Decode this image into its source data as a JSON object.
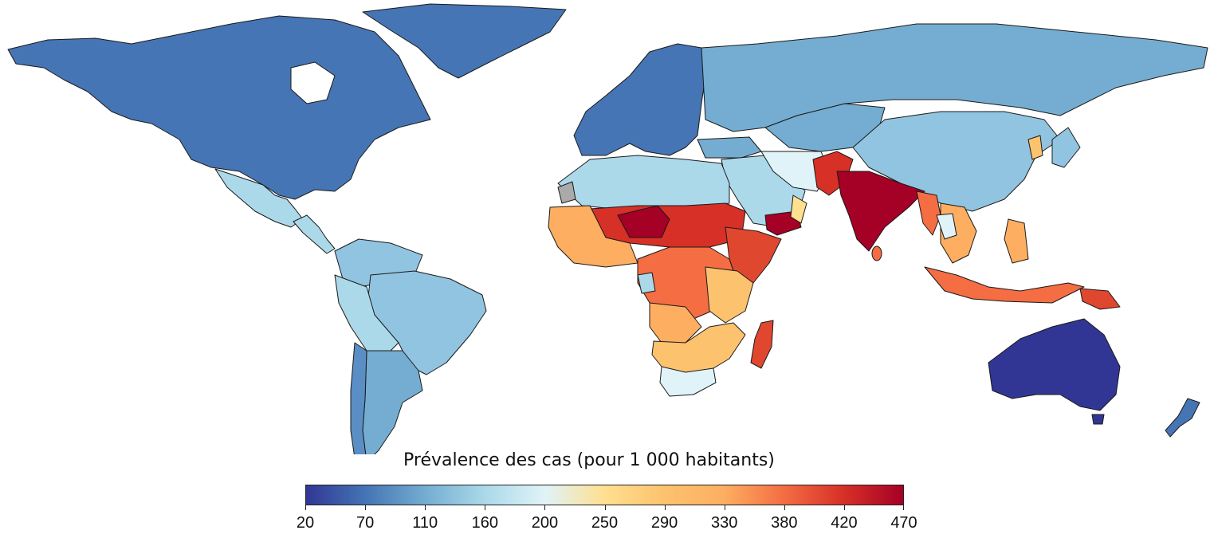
{
  "legend": {
    "title": "Prévalence des cas (pour 1 000 habitants)",
    "ticks": [
      "20",
      "70",
      "110",
      "160",
      "200",
      "250",
      "290",
      "330",
      "380",
      "420",
      "470"
    ],
    "range": [
      20,
      470
    ],
    "scale": "diverging blue-yellow-red"
  },
  "colors": {
    "c20": "#313695",
    "c70": "#4575b4",
    "c95": "#5b8ec4",
    "c110": "#74add1",
    "c140": "#91c4e0",
    "c160": "#abd9e9",
    "c190": "#e0f3f8",
    "c250": "#fee090",
    "c290": "#fdc26e",
    "c330": "#fdae61",
    "c360": "#f46d43",
    "c400": "#e0472f",
    "c440": "#d73027",
    "c470": "#a50026",
    "nodata": "#aaaaaa"
  },
  "map_regions": [
    {
      "name": "north-america",
      "value_band": "c70"
    },
    {
      "name": "greenland",
      "value_band": "c70"
    },
    {
      "name": "mexico",
      "value_band": "c160"
    },
    {
      "name": "central-america",
      "value_band": "c160"
    },
    {
      "name": "south-america-north",
      "value_band": "c140"
    },
    {
      "name": "brazil",
      "value_band": "c140"
    },
    {
      "name": "argentina",
      "value_band": "c110"
    },
    {
      "name": "chile",
      "value_band": "c95"
    },
    {
      "name": "europe",
      "value_band": "c70"
    },
    {
      "name": "russia",
      "value_band": "c110"
    },
    {
      "name": "central-asia",
      "value_band": "c110"
    },
    {
      "name": "china",
      "value_band": "c140"
    },
    {
      "name": "north-africa",
      "value_band": "c160"
    },
    {
      "name": "middle-east",
      "value_band": "c160"
    },
    {
      "name": "sahel",
      "value_band": "c440"
    },
    {
      "name": "west-africa",
      "value_band": "c330"
    },
    {
      "name": "central-africa",
      "value_band": "c360"
    },
    {
      "name": "east-africa",
      "value_band": "c400"
    },
    {
      "name": "southern-africa",
      "value_band": "c290"
    },
    {
      "name": "south-africa",
      "value_band": "c190"
    },
    {
      "name": "madagascar",
      "value_band": "c400"
    },
    {
      "name": "yemen",
      "value_band": "c470"
    },
    {
      "name": "india",
      "value_band": "c470"
    },
    {
      "name": "pakistan",
      "value_band": "c440"
    },
    {
      "name": "southeast-asia",
      "value_band": "c330"
    },
    {
      "name": "indonesia",
      "value_band": "c360"
    },
    {
      "name": "australia",
      "value_band": "c20"
    },
    {
      "name": "new-zealand",
      "value_band": "c70"
    }
  ]
}
